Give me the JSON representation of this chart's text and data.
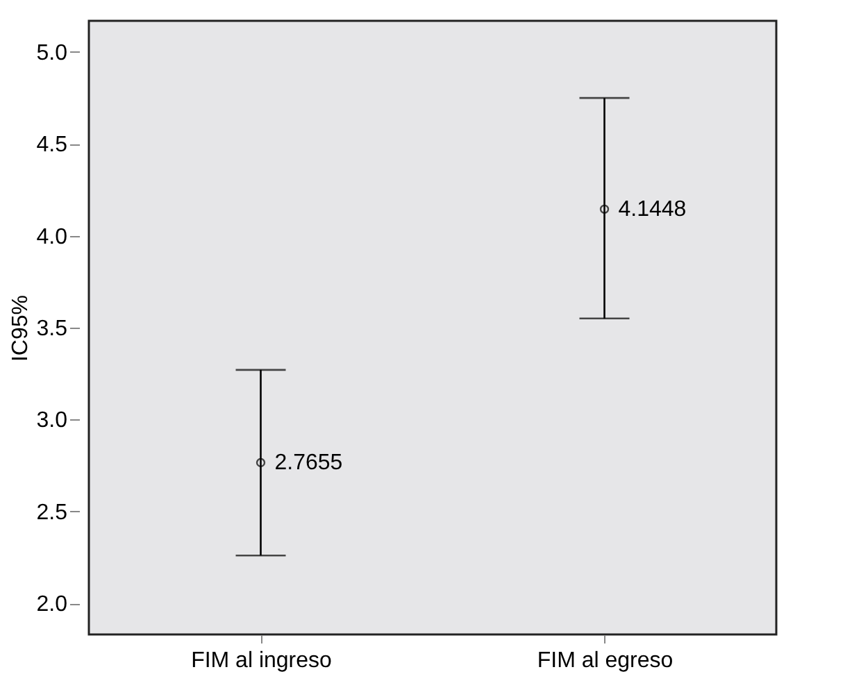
{
  "chart_data": {
    "type": "scatter",
    "categories": [
      "FIM al ingreso",
      "FIM al egreso"
    ],
    "values": [
      2.7655,
      4.1448
    ],
    "errors": [
      [
        2.26,
        3.27
      ],
      [
        3.55,
        4.75
      ]
    ],
    "value_labels": [
      "2.7655",
      "4.1448"
    ],
    "color": "#000000",
    "marker": "circle",
    "ylabel": "IC95%",
    "ylim": [
      1.83,
      5.17
    ],
    "yticks": [
      {
        "value": 2,
        "label": "2.0"
      },
      2.5,
      {
        "value": 3,
        "label": "3.0"
      },
      3.5,
      {
        "value": 4,
        "label": "4.0"
      },
      4.5,
      {
        "value": 5,
        "label": "5.0"
      }
    ],
    "grid": false
  }
}
